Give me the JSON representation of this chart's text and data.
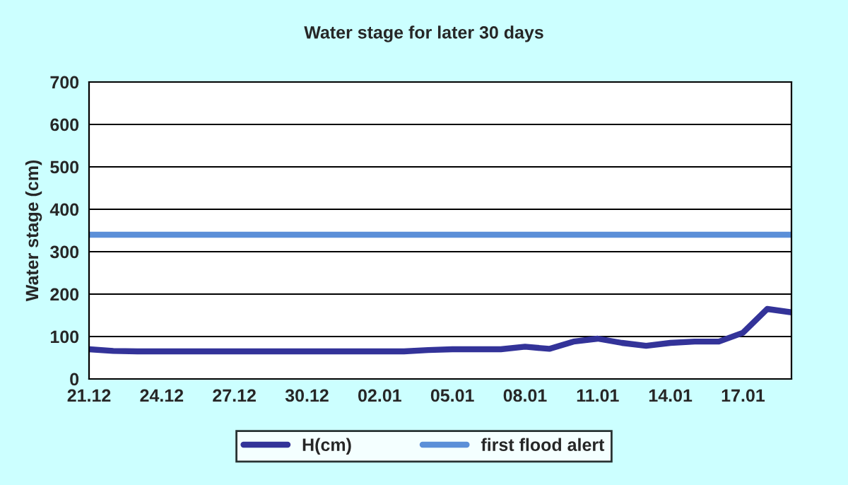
{
  "chart_data": {
    "type": "line",
    "title": "Water stage for later 30 days",
    "ylabel": "Water stage (cm)",
    "categories": [
      "21.12",
      null,
      null,
      "24.12",
      null,
      null,
      "27.12",
      null,
      null,
      "30.12",
      null,
      null,
      "02.01",
      null,
      null,
      "05.01",
      null,
      null,
      "08.01",
      null,
      null,
      "11.01",
      null,
      null,
      "14.01",
      null,
      null,
      "17.01",
      null,
      null
    ],
    "series": [
      {
        "name": "H(cm)",
        "color": "#333399",
        "values": [
          70,
          66,
          65,
          65,
          65,
          65,
          65,
          65,
          65,
          65,
          65,
          65,
          65,
          65,
          68,
          70,
          70,
          70,
          76,
          71,
          88,
          95,
          85,
          78,
          85,
          88,
          88,
          109,
          165,
          157
        ]
      },
      {
        "name": "first flood alert",
        "color": "#5b8fd8",
        "values": [
          340,
          340,
          340,
          340,
          340,
          340,
          340,
          340,
          340,
          340,
          340,
          340,
          340,
          340,
          340,
          340,
          340,
          340,
          340,
          340,
          340,
          340,
          340,
          340,
          340,
          340,
          340,
          340,
          340,
          340
        ]
      }
    ],
    "ylim": [
      0,
      700
    ],
    "yticks": [
      0,
      100,
      200,
      300,
      400,
      500,
      600,
      700
    ],
    "grid": "y",
    "legend": "bottom",
    "marker": "none",
    "line_style": "solid"
  }
}
